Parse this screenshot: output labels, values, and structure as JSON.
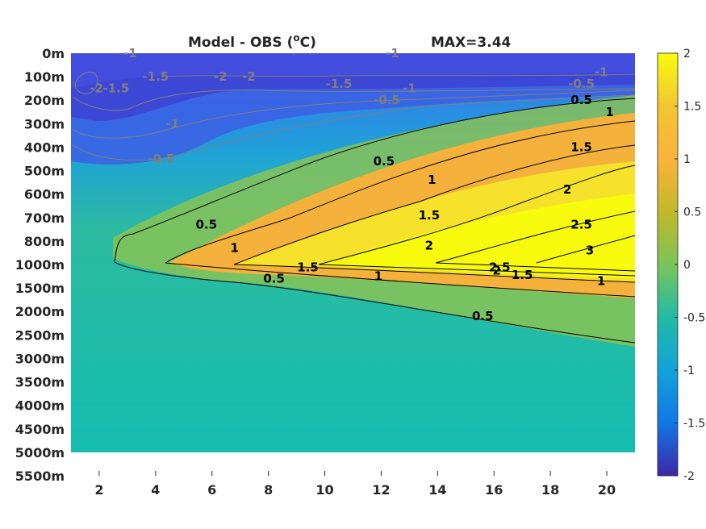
{
  "chart_data": {
    "type": "heatmap",
    "title": "Model - OBS (",
    "title_super": "o",
    "title_unit": "C)",
    "max_label": "MAX=3.44",
    "xticks": [
      "2",
      "4",
      "6",
      "8",
      "10",
      "12",
      "14",
      "16",
      "18",
      "20"
    ],
    "xlim": [
      1,
      21
    ],
    "depth_labels": [
      "0m",
      "100m",
      "200m",
      "300m",
      "400m",
      "500m",
      "600m",
      "700m",
      "800m",
      "1000m",
      "1500m",
      "2000m",
      "2500m",
      "3000m",
      "3500m",
      "4000m",
      "4500m",
      "5000m",
      "5500m"
    ],
    "data_bottom_level": "5000m",
    "colorbar": {
      "ticks": [
        "2",
        "1.5",
        "1",
        "0.5",
        "0",
        "-0.5",
        "-1",
        "-1.5",
        "-2"
      ],
      "range": [
        -2,
        2
      ],
      "colormap": "parula"
    },
    "contour_levels": [
      "-2",
      "-1.5",
      "-1",
      "-0.5",
      "0.5",
      "1",
      "1.5",
      "2",
      "2.5",
      "3"
    ],
    "contour_labels": [
      {
        "text": "-2",
        "x": 1.9,
        "level": "150m",
        "neg": true
      },
      {
        "text": "-1.5",
        "x": 2.6,
        "level": "150m",
        "neg": true
      },
      {
        "text": "-1",
        "x": 3.1,
        "level": "0m",
        "neg": true
      },
      {
        "text": "-1.5",
        "x": 4.0,
        "level": "100m",
        "neg": true
      },
      {
        "text": "-2",
        "x": 6.3,
        "level": "100m",
        "neg": true
      },
      {
        "text": "-2",
        "x": 7.3,
        "level": "100m",
        "neg": true
      },
      {
        "text": "-1",
        "x": 12.4,
        "level": "0m",
        "neg": true
      },
      {
        "text": "-1.5",
        "x": 10.5,
        "level": "130m",
        "neg": true
      },
      {
        "text": "-1",
        "x": 13.0,
        "level": "150m",
        "neg": true
      },
      {
        "text": "-0.5",
        "x": 12.2,
        "level": "200m",
        "neg": true
      },
      {
        "text": "-1",
        "x": 4.6,
        "level": "300m",
        "neg": true
      },
      {
        "text": "-0.5",
        "x": 4.2,
        "level": "450m",
        "neg": true
      },
      {
        "text": "-1",
        "x": 19.8,
        "level": "80m",
        "neg": true
      },
      {
        "text": "-0.5",
        "x": 19.1,
        "level": "130m",
        "neg": true
      },
      {
        "text": "0.5",
        "x": 19.1,
        "level": "200m",
        "neg": false
      },
      {
        "text": "1",
        "x": 20.1,
        "level": "250m",
        "neg": false
      },
      {
        "text": "1.5",
        "x": 19.1,
        "level": "400m",
        "neg": false
      },
      {
        "text": "2",
        "x": 18.6,
        "level": "580m",
        "neg": false
      },
      {
        "text": "2.5",
        "x": 19.1,
        "level": "730m",
        "neg": false
      },
      {
        "text": "3",
        "x": 19.4,
        "level": "880m",
        "neg": false
      },
      {
        "text": "0.5",
        "x": 12.1,
        "level": "460m",
        "neg": false
      },
      {
        "text": "1",
        "x": 13.8,
        "level": "540m",
        "neg": false
      },
      {
        "text": "1.5",
        "x": 13.7,
        "level": "690m",
        "neg": false
      },
      {
        "text": "2",
        "x": 13.7,
        "level": "840m",
        "neg": false
      },
      {
        "text": "0.5",
        "x": 5.8,
        "level": "730m",
        "neg": false
      },
      {
        "text": "1",
        "x": 6.8,
        "level": "860m",
        "neg": false
      },
      {
        "text": "1.5",
        "x": 9.4,
        "level": "1060m",
        "neg": false
      },
      {
        "text": "1",
        "x": 11.9,
        "level": "1250m",
        "neg": false
      },
      {
        "text": "0.5",
        "x": 8.2,
        "level": "1300m",
        "neg": false
      },
      {
        "text": "2.5",
        "x": 16.2,
        "level": "1060m",
        "neg": false
      },
      {
        "text": "2",
        "x": 16.1,
        "level": "1130m",
        "neg": false
      },
      {
        "text": "1.5",
        "x": 17.0,
        "level": "1220m",
        "neg": false
      },
      {
        "text": "1",
        "x": 19.8,
        "level": "1350m",
        "neg": false
      },
      {
        "text": "0.5",
        "x": 15.6,
        "level": "2100m",
        "neg": false
      }
    ]
  }
}
